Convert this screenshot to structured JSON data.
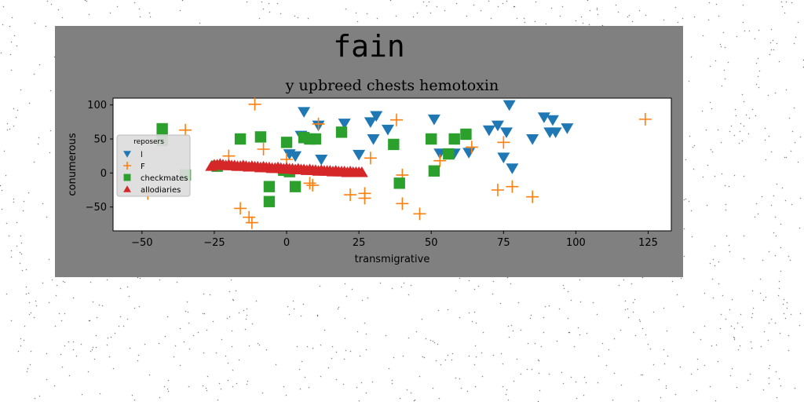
{
  "figure": {
    "suptitle": "fain"
  },
  "chart_data": {
    "type": "scatter",
    "title": "y upbreed chests hemotoxin",
    "xlabel": "transmigrative",
    "ylabel": "conumerous",
    "xlim": [
      -60,
      133
    ],
    "ylim": [
      -85,
      110
    ],
    "xticks": [
      -50,
      -25,
      0,
      25,
      50,
      75,
      100,
      125
    ],
    "yticks": [
      -50,
      0,
      50,
      100
    ],
    "xtick_labels": [
      "−50",
      "−25",
      "0",
      "25",
      "50",
      "75",
      "100",
      "125"
    ],
    "ytick_labels": [
      "−50",
      "0",
      "50",
      "100"
    ],
    "grid": false,
    "legend": {
      "title": "reposers",
      "placement": "center-left"
    },
    "series": [
      {
        "name": "l",
        "marker": "triangle-down",
        "color": "#1f77b4",
        "x": [
          6,
          11,
          20,
          25,
          31,
          29,
          35,
          30,
          51,
          53,
          58,
          63,
          70,
          73,
          75,
          76,
          77,
          78,
          85,
          89,
          92,
          91,
          93,
          97,
          12,
          1,
          3,
          5
        ],
        "y": [
          90,
          70,
          73,
          27,
          84,
          75,
          64,
          50,
          79,
          29,
          29,
          30,
          63,
          70,
          23,
          60,
          100,
          7,
          50,
          82,
          78,
          60,
          60,
          66,
          20,
          28,
          25,
          55
        ]
      },
      {
        "name": "F",
        "marker": "plus",
        "color": "#ff7f0e",
        "x": [
          -35,
          -11,
          11,
          38,
          124,
          -20,
          -8,
          0,
          8,
          9,
          29,
          22,
          27,
          27,
          40,
          40,
          46,
          53,
          64,
          73,
          75,
          78,
          85,
          -48,
          -16,
          -13,
          -12
        ],
        "y": [
          63,
          101,
          72,
          78,
          79,
          25,
          35,
          20,
          -15,
          -18,
          22,
          -32,
          -30,
          -37,
          -3,
          -45,
          -60,
          18,
          38,
          -25,
          45,
          -20,
          -35,
          -30,
          -52,
          -65,
          -73
        ]
      },
      {
        "name": "checkmates",
        "marker": "square",
        "color": "#2ca02c",
        "x": [
          -43,
          -43,
          -35,
          -24,
          -16,
          -9,
          0,
          -6,
          -6,
          -1,
          3,
          6,
          10,
          19,
          37,
          39,
          50,
          51,
          56,
          58,
          62,
          1,
          8
        ],
        "y": [
          65,
          48,
          -3,
          10,
          50,
          53,
          45,
          -20,
          -42,
          4,
          -20,
          52,
          50,
          60,
          42,
          -15,
          50,
          3,
          28,
          50,
          57,
          2,
          50
        ]
      },
      {
        "name": "allodiaries",
        "marker": "triangle-up",
        "color": "#d62728",
        "x": [
          -26,
          -25,
          -24,
          -23,
          -22,
          -21,
          -20,
          -19,
          -18,
          -17,
          -16,
          -15,
          -14,
          -13,
          -12,
          -11,
          -10,
          -9,
          -8,
          -7,
          -6,
          -5,
          -4,
          -3,
          -2,
          -1,
          0,
          1,
          2,
          3,
          4,
          5,
          6,
          7,
          8,
          9,
          10,
          11,
          12,
          13,
          14,
          15,
          16,
          17,
          18,
          19,
          20,
          21,
          22,
          23,
          24,
          25,
          26
        ],
        "y": [
          10,
          12,
          12,
          13,
          12,
          11,
          12,
          11,
          11,
          10,
          10,
          11,
          10,
          9,
          10,
          9,
          9,
          8,
          9,
          8,
          8,
          7,
          7,
          8,
          7,
          6,
          7,
          6,
          6,
          5,
          6,
          5,
          5,
          4,
          5,
          4,
          4,
          3,
          4,
          3,
          3,
          3,
          2,
          3,
          2,
          2,
          2,
          1,
          2,
          1,
          1,
          1,
          1
        ]
      }
    ]
  }
}
